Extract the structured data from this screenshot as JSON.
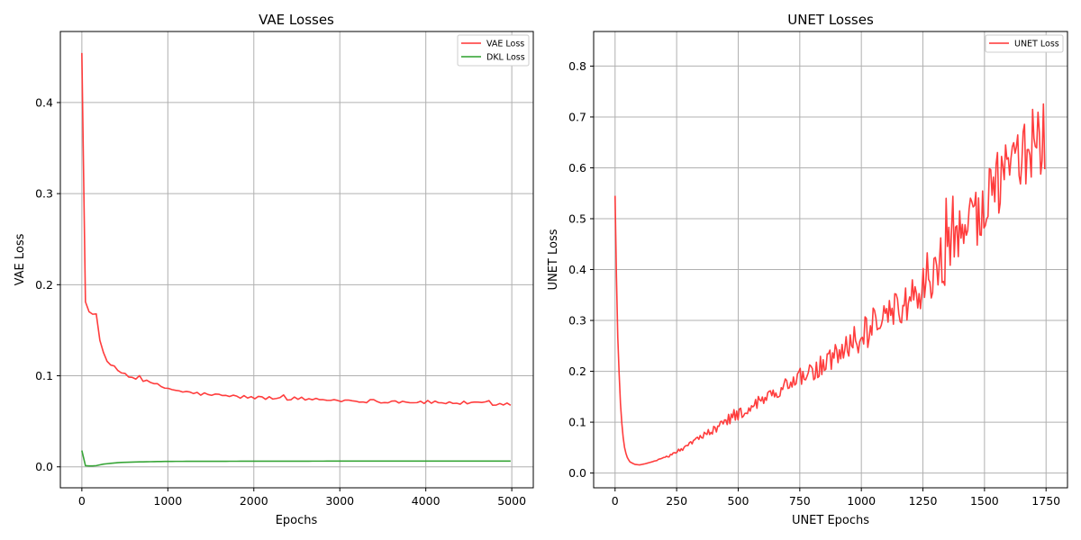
{
  "colors": {
    "red": "#ff3333",
    "green": "#2ca02c",
    "grid": "#b0b0b0"
  },
  "chart_data": [
    {
      "type": "line",
      "title": "VAE Losses",
      "xlabel": "Epochs",
      "ylabel": "VAE Loss",
      "xlim": [
        -250,
        5250
      ],
      "ylim": [
        -0.023,
        0.478
      ],
      "xticks": [
        0,
        1000,
        2000,
        3000,
        4000,
        5000
      ],
      "xtick_labels": [
        "0",
        "1000",
        "2000",
        "3000",
        "4000",
        "5000"
      ],
      "yticks": [
        0.0,
        0.1,
        0.2,
        0.3,
        0.4
      ],
      "ytick_labels": [
        "0.0",
        "0.1",
        "0.2",
        "0.3",
        "0.4"
      ],
      "grid": true,
      "legend_position": "top-right",
      "series": [
        {
          "name": "VAE Loss",
          "color": "#ff3333",
          "noise": 0.003,
          "x": [
            0,
            5,
            10,
            20,
            30,
            50,
            80,
            100,
            150,
            180,
            200,
            250,
            300,
            400,
            500,
            600,
            800,
            1000,
            1200,
            1500,
            2000,
            2500,
            3000,
            3500,
            4000,
            4500,
            5000
          ],
          "y": [
            0.455,
            0.35,
            0.25,
            0.2,
            0.185,
            0.178,
            0.172,
            0.168,
            0.167,
            0.165,
            0.14,
            0.125,
            0.115,
            0.107,
            0.102,
            0.098,
            0.092,
            0.086,
            0.082,
            0.079,
            0.076,
            0.075,
            0.073,
            0.072,
            0.071,
            0.07,
            0.069
          ]
        },
        {
          "name": "DKL Loss",
          "color": "#2ca02c",
          "noise": 0.0,
          "x": [
            0,
            5,
            10,
            20,
            50,
            100,
            150,
            200,
            250,
            300,
            400,
            500,
            700,
            1000,
            2000,
            3000,
            4000,
            5000
          ],
          "y": [
            0.018,
            0.008,
            0.004,
            0.002,
            0.001,
            0.001,
            0.001,
            0.002,
            0.003,
            0.0035,
            0.0045,
            0.005,
            0.0055,
            0.006,
            0.0062,
            0.0063,
            0.0063,
            0.0063
          ]
        }
      ]
    },
    {
      "type": "line",
      "title": "UNET Losses",
      "xlabel": "UNET Epochs",
      "ylabel": "UNET Loss",
      "xlim": [
        -87,
        1837
      ],
      "ylim": [
        -0.029,
        0.868
      ],
      "xticks": [
        0,
        250,
        500,
        750,
        1000,
        1250,
        1500,
        1750
      ],
      "xtick_labels": [
        "0",
        "250",
        "500",
        "750",
        "1000",
        "1250",
        "1500",
        "1750"
      ],
      "yticks": [
        0.0,
        0.1,
        0.2,
        0.3,
        0.4,
        0.5,
        0.6,
        0.7,
        0.8
      ],
      "ytick_labels": [
        "0.0",
        "0.1",
        "0.2",
        "0.3",
        "0.4",
        "0.5",
        "0.6",
        "0.7",
        "0.8"
      ],
      "grid": true,
      "legend_position": "top-right",
      "series": [
        {
          "name": "UNET Loss",
          "color": "#ff3333",
          "noise_profile": [
            [
              0,
              0.0
            ],
            [
              150,
              0.0
            ],
            [
              400,
              0.012
            ],
            [
              800,
              0.03
            ],
            [
              1100,
              0.06
            ],
            [
              1400,
              0.09
            ],
            [
              1750,
              0.11
            ]
          ],
          "x": [
            0,
            5,
            10,
            20,
            30,
            40,
            50,
            60,
            80,
            100,
            120,
            150,
            200,
            250,
            300,
            400,
            500,
            600,
            700,
            800,
            900,
            1000,
            1100,
            1200,
            1300,
            1400,
            1500,
            1600,
            1700,
            1750
          ],
          "y": [
            0.545,
            0.4,
            0.28,
            0.15,
            0.08,
            0.045,
            0.03,
            0.022,
            0.017,
            0.016,
            0.018,
            0.022,
            0.03,
            0.042,
            0.055,
            0.085,
            0.115,
            0.145,
            0.175,
            0.2,
            0.23,
            0.27,
            0.31,
            0.35,
            0.4,
            0.46,
            0.53,
            0.6,
            0.65,
            0.66
          ]
        }
      ]
    }
  ]
}
